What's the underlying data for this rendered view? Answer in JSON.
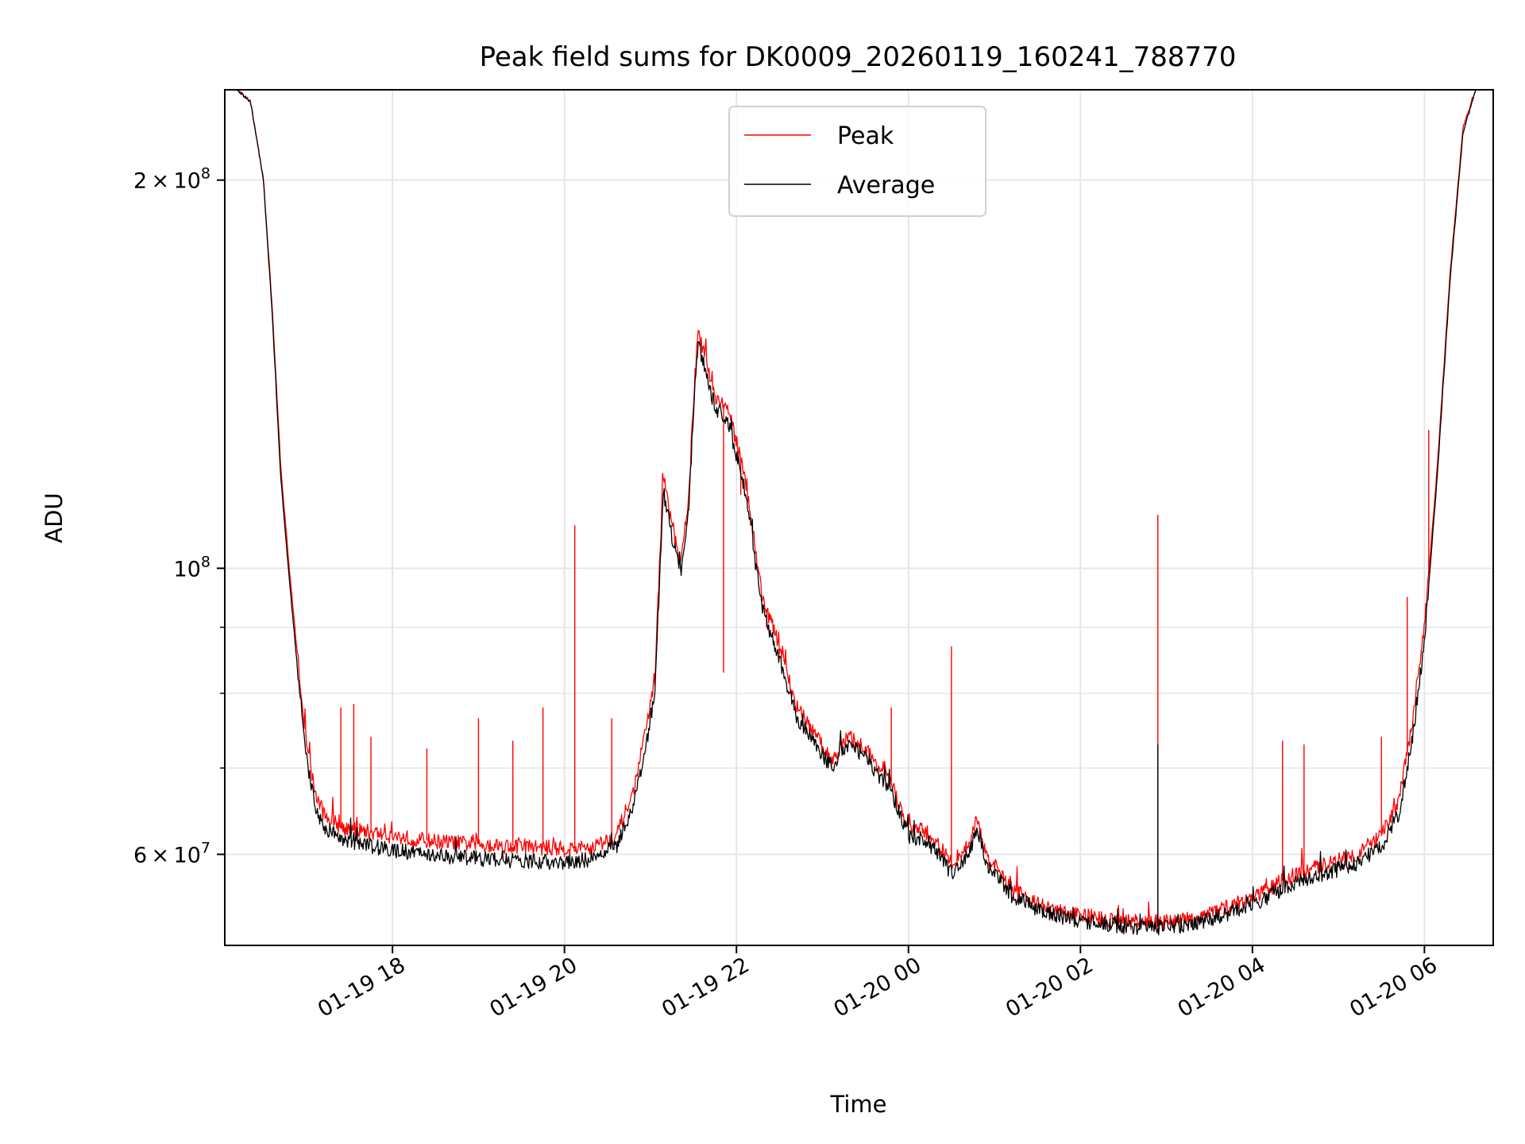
{
  "chart_data": {
    "type": "line",
    "title": "Peak field sums for DK0009_20260119_160241_788770",
    "xlabel": "Time",
    "ylabel": "ADU",
    "yscale": "log",
    "grid": true,
    "legend_position": "top-center",
    "xlim_hours_since_2026-01-19_00:00": [
      16.05,
      30.8
    ],
    "ylim": [
      51000000,
      235000000
    ],
    "x_ticks": [
      {
        "label": "01-19 18",
        "hours": 18
      },
      {
        "label": "01-19 20",
        "hours": 20
      },
      {
        "label": "01-19 22",
        "hours": 22
      },
      {
        "label": "01-20 00",
        "hours": 24
      },
      {
        "label": "01-20 02",
        "hours": 26
      },
      {
        "label": "01-20 04",
        "hours": 28
      },
      {
        "label": "01-20 06",
        "hours": 30
      }
    ],
    "y_ticks": [
      {
        "value": 200000000,
        "mantissa": "2",
        "times": "×",
        "base": "10",
        "exp": "8"
      },
      {
        "value": 100000000,
        "mantissa": "",
        "times": "",
        "base": "10",
        "exp": "8"
      },
      {
        "value": 60000000,
        "mantissa": "6",
        "times": "×",
        "base": "10",
        "exp": "7"
      }
    ],
    "y_minor_ticks": [
      70000000,
      80000000,
      90000000
    ],
    "series": [
      {
        "name": "Peak",
        "color": "#ff0000",
        "points": [
          [
            16.2,
            235000000
          ],
          [
            16.35,
            230000000
          ],
          [
            16.5,
            200000000
          ],
          [
            16.6,
            160000000
          ],
          [
            16.7,
            120000000
          ],
          [
            16.8,
            100000000
          ],
          [
            16.9,
            85000000
          ],
          [
            17.0,
            73000000
          ],
          [
            17.1,
            67000000
          ],
          [
            17.2,
            64500000
          ],
          [
            17.4,
            63000000
          ],
          [
            17.7,
            62500000
          ],
          [
            18.0,
            62000000
          ],
          [
            18.4,
            61500000
          ],
          [
            18.8,
            61200000
          ],
          [
            19.2,
            61000000
          ],
          [
            19.6,
            60800000
          ],
          [
            20.0,
            60600000
          ],
          [
            20.3,
            60700000
          ],
          [
            20.6,
            62000000
          ],
          [
            20.8,
            67000000
          ],
          [
            20.95,
            75000000
          ],
          [
            21.05,
            82000000
          ],
          [
            21.15,
            118000000
          ],
          [
            21.25,
            108000000
          ],
          [
            21.35,
            100000000
          ],
          [
            21.45,
            115000000
          ],
          [
            21.5,
            135000000
          ],
          [
            21.55,
            152000000
          ],
          [
            21.65,
            145000000
          ],
          [
            21.75,
            136000000
          ],
          [
            21.9,
            133000000
          ],
          [
            22.1,
            118000000
          ],
          [
            22.3,
            95000000
          ],
          [
            22.5,
            87000000
          ],
          [
            22.7,
            78000000
          ],
          [
            22.9,
            74500000
          ],
          [
            23.1,
            71000000
          ],
          [
            23.3,
            74000000
          ],
          [
            23.5,
            72500000
          ],
          [
            23.8,
            68000000
          ],
          [
            24.0,
            63000000
          ],
          [
            24.2,
            62500000
          ],
          [
            24.35,
            61000000
          ],
          [
            24.5,
            59000000
          ],
          [
            24.7,
            61000000
          ],
          [
            24.8,
            64000000
          ],
          [
            24.9,
            60000000
          ],
          [
            25.2,
            56500000
          ],
          [
            25.6,
            54500000
          ],
          [
            26.0,
            53800000
          ],
          [
            26.4,
            53300000
          ],
          [
            26.8,
            53100000
          ],
          [
            27.2,
            53300000
          ],
          [
            27.6,
            54300000
          ],
          [
            28.0,
            55500000
          ],
          [
            28.4,
            57500000
          ],
          [
            28.8,
            58800000
          ],
          [
            29.2,
            60000000
          ],
          [
            29.5,
            62000000
          ],
          [
            29.7,
            66000000
          ],
          [
            29.85,
            75000000
          ],
          [
            30.0,
            90000000
          ],
          [
            30.15,
            120000000
          ],
          [
            30.3,
            170000000
          ],
          [
            30.45,
            220000000
          ],
          [
            30.6,
            235000000
          ]
        ],
        "spikes": [
          [
            17.4,
            78000000
          ],
          [
            17.55,
            78500000
          ],
          [
            17.75,
            74000000
          ],
          [
            18.4,
            72500000
          ],
          [
            19.0,
            76500000
          ],
          [
            19.4,
            73500000
          ],
          [
            19.75,
            78000000
          ],
          [
            20.12,
            108000000
          ],
          [
            20.55,
            76500000
          ],
          [
            21.85,
            83000000
          ],
          [
            22.05,
            114000000
          ],
          [
            22.35,
            90000000
          ],
          [
            23.8,
            78000000
          ],
          [
            24.5,
            87000000
          ],
          [
            26.9,
            110000000
          ],
          [
            28.35,
            73500000
          ],
          [
            28.6,
            73000000
          ],
          [
            29.5,
            74000000
          ],
          [
            29.8,
            95000000
          ],
          [
            30.05,
            128000000
          ]
        ]
      },
      {
        "name": "Average",
        "color": "#000000",
        "points": [
          [
            16.2,
            235000000
          ],
          [
            16.35,
            230000000
          ],
          [
            16.5,
            200000000
          ],
          [
            16.6,
            158000000
          ],
          [
            16.7,
            118000000
          ],
          [
            16.8,
            98000000
          ],
          [
            16.9,
            83000000
          ],
          [
            17.0,
            71000000
          ],
          [
            17.1,
            65500000
          ],
          [
            17.2,
            63000000
          ],
          [
            17.4,
            61800000
          ],
          [
            17.7,
            61000000
          ],
          [
            18.0,
            60500000
          ],
          [
            18.4,
            60000000
          ],
          [
            18.8,
            59700000
          ],
          [
            19.2,
            59400000
          ],
          [
            19.6,
            59200000
          ],
          [
            20.0,
            59200000
          ],
          [
            20.3,
            59500000
          ],
          [
            20.6,
            60800000
          ],
          [
            20.8,
            65000000
          ],
          [
            20.95,
            73000000
          ],
          [
            21.05,
            80000000
          ],
          [
            21.15,
            115000000
          ],
          [
            21.25,
            106000000
          ],
          [
            21.35,
            99000000
          ],
          [
            21.45,
            113000000
          ],
          [
            21.5,
            132000000
          ],
          [
            21.55,
            149000000
          ],
          [
            21.65,
            142000000
          ],
          [
            21.75,
            133000000
          ],
          [
            21.9,
            130000000
          ],
          [
            22.1,
            115000000
          ],
          [
            22.3,
            93000000
          ],
          [
            22.5,
            85000000
          ],
          [
            22.7,
            76500000
          ],
          [
            22.9,
            73500000
          ],
          [
            23.1,
            70000000
          ],
          [
            23.3,
            73000000
          ],
          [
            23.5,
            71500000
          ],
          [
            23.8,
            67000000
          ],
          [
            24.0,
            62000000
          ],
          [
            24.2,
            61500000
          ],
          [
            24.35,
            60000000
          ],
          [
            24.5,
            58000000
          ],
          [
            24.7,
            60000000
          ],
          [
            24.8,
            63000000
          ],
          [
            24.9,
            59000000
          ],
          [
            25.2,
            55800000
          ],
          [
            25.6,
            54000000
          ],
          [
            26.0,
            53300000
          ],
          [
            26.4,
            52800000
          ],
          [
            26.8,
            52600000
          ],
          [
            27.2,
            52800000
          ],
          [
            27.6,
            53700000
          ],
          [
            28.0,
            54800000
          ],
          [
            28.4,
            56700000
          ],
          [
            28.8,
            57900000
          ],
          [
            29.2,
            59000000
          ],
          [
            29.5,
            60800000
          ],
          [
            29.7,
            64500000
          ],
          [
            29.85,
            73000000
          ],
          [
            30.0,
            88000000
          ],
          [
            30.15,
            118000000
          ],
          [
            30.3,
            168000000
          ],
          [
            30.45,
            218000000
          ],
          [
            30.6,
            235000000
          ]
        ],
        "spikes": [
          [
            26.9,
            73000000
          ]
        ]
      }
    ]
  }
}
